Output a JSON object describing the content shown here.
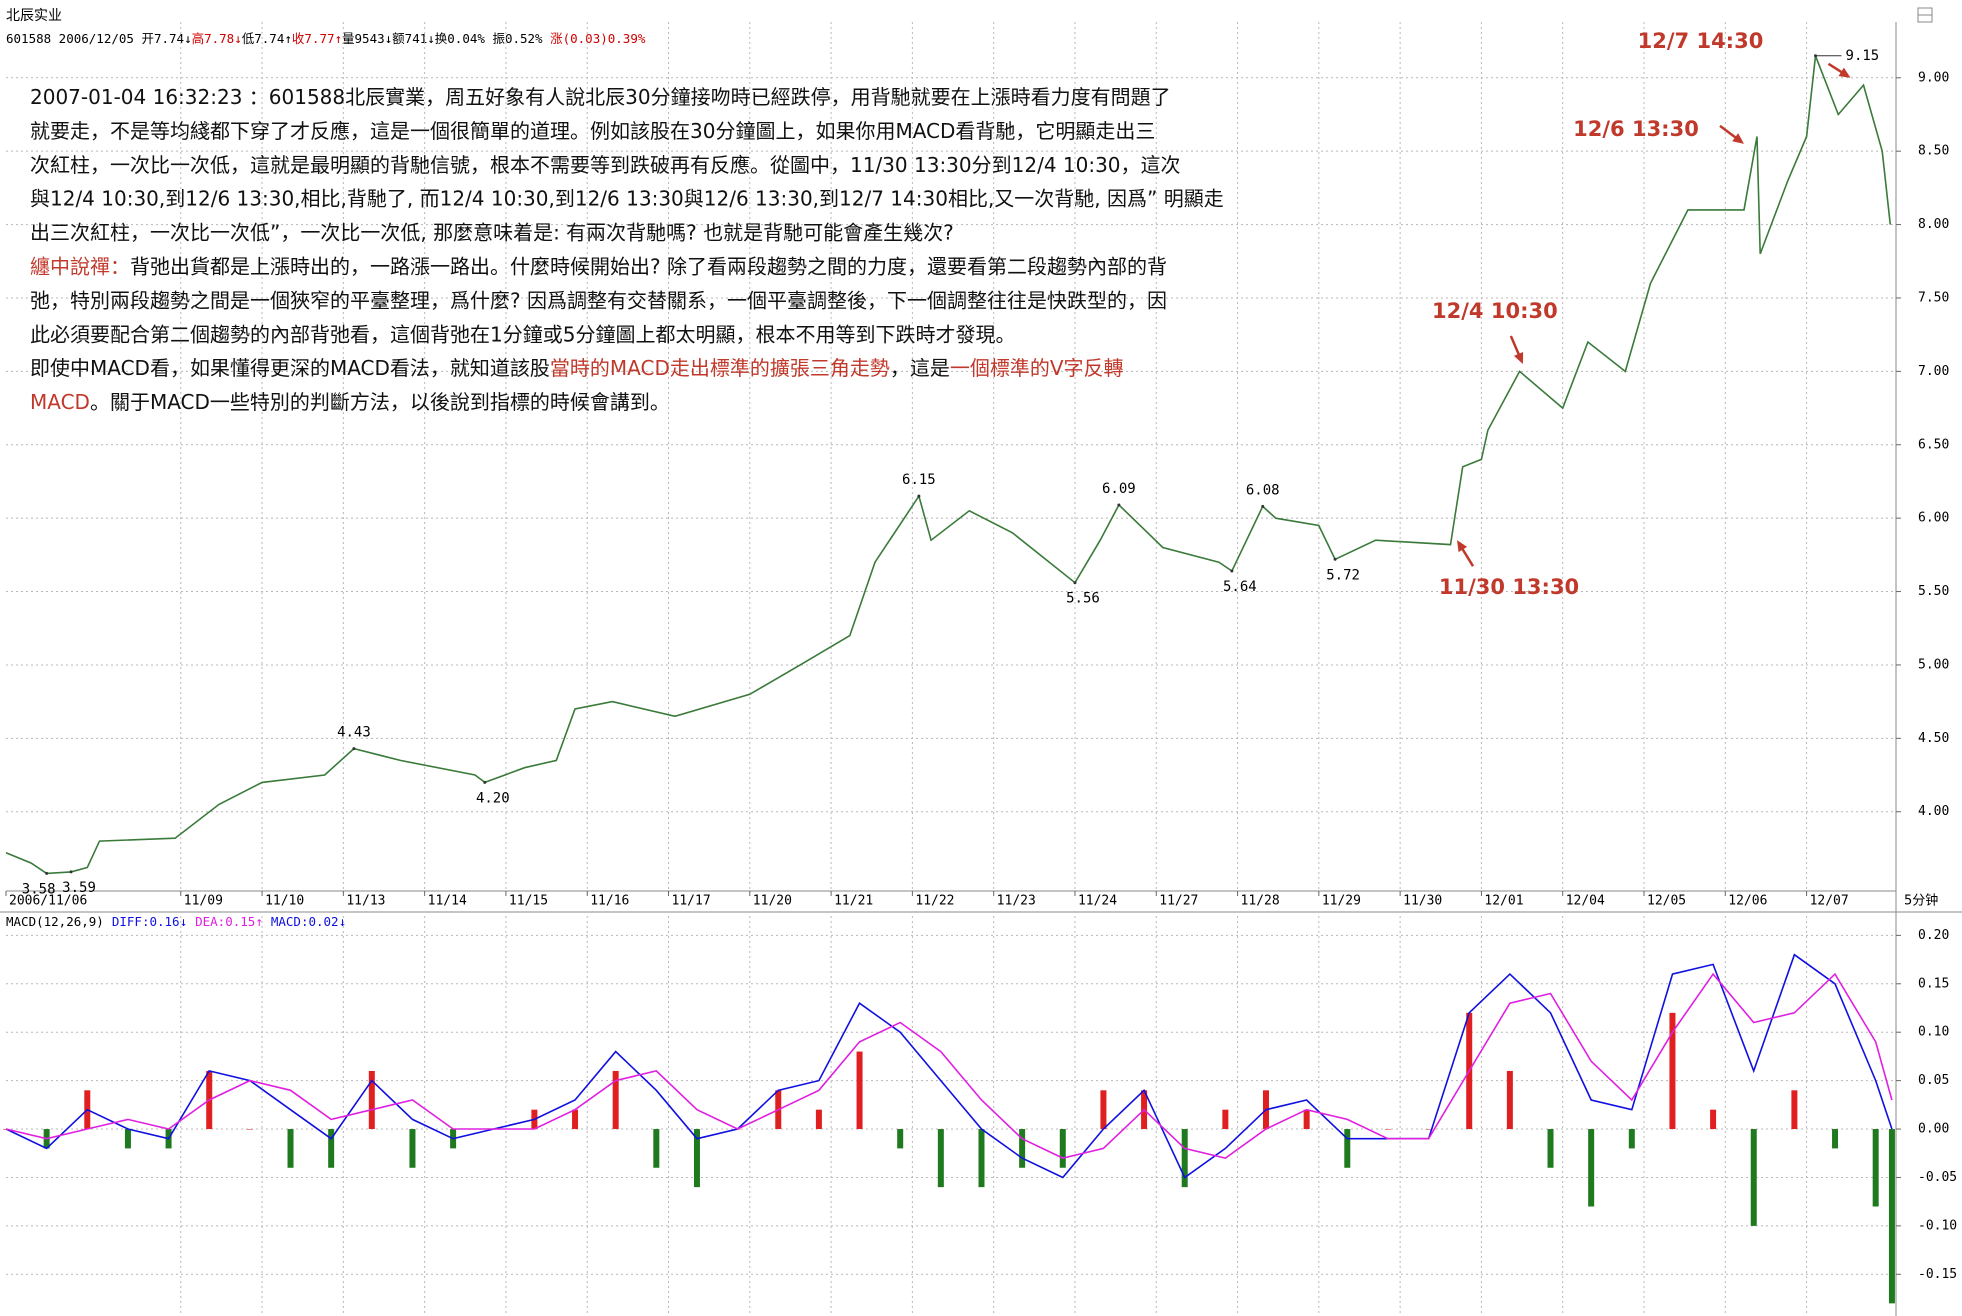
{
  "header": {
    "name": "北辰实业",
    "quote": [
      "601588 2006/12/05 ",
      "开7.74↓",
      {
        "text": "高7.78↓",
        "color": "#d00000"
      },
      "低7.74↑",
      {
        "text": "收7.77↑",
        "color": "#d00000"
      },
      "量9543↓",
      "额741↓",
      "换0.04% ",
      "振0.52% ",
      {
        "text": "涨(0.03)0.39%",
        "color": "#d00000"
      }
    ]
  },
  "note": {
    "lines": [
      [
        "2007-01-04 16:32:23 ：601588北辰實業，周五好象有人說北辰30分鐘接吻時已經跌停，用背馳就要在上漲時看力度有問題了"
      ],
      [
        "就要走，不是等均綫都下穿了才反應，這是一個很簡單的道理。例如該股在30分鐘圖上，如果你用MACD看背馳，它明顯走出三"
      ],
      [
        "次紅柱，一次比一次低，這就是最明顯的背馳信號，根本不需要等到跌破再有反應。從圖中，11/30 13:30分到12/4 10:30，這次"
      ],
      [
        "與12/4 10:30,到12/6 13:30,相比,背馳了, 而12/4 10:30,到12/6 13:30與12/6 13:30,到12/7 14:30相比,又一次背馳, 因爲” 明顯走"
      ],
      [
        "出三次紅柱，一次比一次低”，一次比一次低, 那麼意味着是: 有兩次背馳嗎? 也就是背馳可能會產生幾次?"
      ],
      [
        {
          "text": "纏中說禪：",
          "color": "#c0392b"
        },
        "背弛出貨都是上漲時出的，一路漲一路出。什麼時候開始出? 除了看兩段趨勢之間的力度，還要看第二段趨勢內部的背"
      ],
      [
        "弛，特別兩段趨勢之間是一個狹窄的平臺整理，爲什麼? 因爲調整有交替關系，一個平臺調整後，下一個調整往往是快跌型的，因"
      ],
      [
        "此必須要配合第二個趨勢的內部背弛看，這個背弛在1分鐘或5分鐘圖上都太明顯，根本不用等到下跌時才發現。"
      ],
      [
        "即使中MACD看，如果懂得更深的MACD看法，就知道該股",
        {
          "text": "當時的MACD走出標準的擴張三角走勢",
          "color": "#c0392b"
        },
        "，這是",
        {
          "text": "一個標準的V字反轉",
          "color": "#c0392b"
        }
      ],
      [
        {
          "text": "MACD",
          "color": "#c0392b"
        },
        "。關于MACD一些特別的判斷方法，以後說到指標的時候會講到。"
      ]
    ]
  },
  "chart_data": [
    {
      "type": "line",
      "color": "#3a7a3a",
      "grid": true,
      "period_label": "5分钟",
      "x": [
        0,
        0.31,
        0.5,
        0.8,
        1.0,
        1.15,
        2.08,
        2.62,
        3.15,
        3.92,
        4.28,
        4.85,
        5.77,
        5.89,
        6.38,
        6.77,
        7.0,
        7.46,
        8.23,
        9.15,
        9.77,
        10.38,
        10.69,
        11.23,
        11.38,
        11.85,
        12.38,
        13.15,
        13.46,
        13.69,
        14.23,
        14.92,
        15.08,
        15.46,
        15.62,
        16.15,
        16.35,
        16.85,
        17.77,
        17.92,
        18.15,
        18.23,
        18.62,
        19.15,
        19.46,
        19.92,
        20.23,
        20.69,
        21.38,
        21.54,
        21.58,
        21.92,
        22.15,
        22.26,
        22.54,
        22.85,
        23.08,
        23.18
      ],
      "values": [
        3.72,
        3.65,
        3.58,
        3.59,
        3.62,
        3.8,
        3.82,
        4.05,
        4.2,
        4.25,
        4.43,
        4.35,
        4.25,
        4.2,
        4.3,
        4.35,
        4.7,
        4.75,
        4.65,
        4.8,
        5.0,
        5.2,
        5.7,
        6.15,
        5.85,
        6.05,
        5.9,
        5.56,
        5.85,
        6.09,
        5.8,
        5.7,
        5.64,
        6.08,
        6.0,
        5.95,
        5.72,
        5.85,
        5.82,
        6.35,
        6.4,
        6.6,
        7.0,
        6.75,
        7.2,
        7.0,
        7.6,
        8.1,
        8.1,
        8.6,
        7.8,
        8.3,
        8.6,
        9.15,
        8.75,
        8.95,
        8.5,
        8.0
      ],
      "price_marks": [
        {
          "x": 0.5,
          "value": 3.58,
          "label": "3.58",
          "kind": "low"
        },
        {
          "x": 0.8,
          "value": 3.59,
          "label": "3.59",
          "kind": "low"
        },
        {
          "x": 4.28,
          "value": 4.43,
          "label": "4.43",
          "kind": "high"
        },
        {
          "x": 5.89,
          "value": 4.2,
          "label": "4.20",
          "kind": "low"
        },
        {
          "x": 11.23,
          "value": 6.15,
          "label": "6.15",
          "kind": "high"
        },
        {
          "x": 13.15,
          "value": 5.56,
          "label": "5.56",
          "kind": "low"
        },
        {
          "x": 13.69,
          "value": 6.09,
          "label": "6.09",
          "kind": "high"
        },
        {
          "x": 15.08,
          "value": 5.64,
          "label": "5.64",
          "kind": "low"
        },
        {
          "x": 15.46,
          "value": 6.08,
          "label": "6.08",
          "kind": "high"
        },
        {
          "x": 16.35,
          "value": 5.72,
          "label": "5.72",
          "kind": "low"
        },
        {
          "x": 22.26,
          "value": 9.15,
          "label": "9.15",
          "kind": "peak"
        }
      ],
      "annotations": [
        {
          "text": "12/7 14:30",
          "x": 22.69,
          "y": 9.0
        },
        {
          "text": "12/6 13:30",
          "x": 21.38,
          "y": 8.55
        },
        {
          "text": "12/4 10:30",
          "x": 18.66,
          "y": 7.05
        },
        {
          "text": "11/30 13:30",
          "x": 17.85,
          "y": 5.85
        }
      ],
      "annotation_color": "#c0392b",
      "xlim": [
        0,
        23.25
      ],
      "xticks": [
        {
          "value": 0,
          "label": "2006/11/06"
        },
        {
          "value": 2.15,
          "label": "11/09"
        },
        {
          "value": 3.15,
          "label": "11/10"
        },
        {
          "value": 4.15,
          "label": "11/13"
        },
        {
          "value": 5.15,
          "label": "11/14"
        },
        {
          "value": 6.15,
          "label": "11/15"
        },
        {
          "value": 7.15,
          "label": "11/16"
        },
        {
          "value": 8.15,
          "label": "11/17"
        },
        {
          "value": 9.15,
          "label": "11/20"
        },
        {
          "value": 10.15,
          "label": "11/21"
        },
        {
          "value": 11.15,
          "label": "11/22"
        },
        {
          "value": 12.15,
          "label": "11/23"
        },
        {
          "value": 13.15,
          "label": "11/24"
        },
        {
          "value": 14.15,
          "label": "11/27"
        },
        {
          "value": 15.15,
          "label": "11/28"
        },
        {
          "value": 16.15,
          "label": "11/29"
        },
        {
          "value": 17.15,
          "label": "11/30"
        },
        {
          "value": 18.15,
          "label": "12/01"
        },
        {
          "value": 19.15,
          "label": "12/04"
        },
        {
          "value": 20.15,
          "label": "12/05"
        },
        {
          "value": 21.15,
          "label": "12/06"
        },
        {
          "value": 22.15,
          "label": "12/07"
        }
      ],
      "ylim": [
        3.46,
        9.38
      ],
      "yticks": [
        {
          "value": 4.0,
          "label": "4.00"
        },
        {
          "value": 4.5,
          "label": "4.50"
        },
        {
          "value": 5.0,
          "label": "5.00"
        },
        {
          "value": 5.5,
          "label": "5.50"
        },
        {
          "value": 6.0,
          "label": "6.00"
        },
        {
          "value": 6.5,
          "label": "6.50"
        },
        {
          "value": 7.0,
          "label": "7.00"
        },
        {
          "value": 7.5,
          "label": "7.50"
        },
        {
          "value": 8.0,
          "label": "8.00"
        },
        {
          "value": 8.5,
          "label": "8.50"
        },
        {
          "value": 9.0,
          "label": "9.00"
        }
      ]
    },
    {
      "type": "macd",
      "title": "MACD(12,26,9)",
      "grid": true,
      "x": [
        0,
        0.5,
        1,
        1.5,
        2,
        2.5,
        3,
        3.5,
        4,
        4.5,
        5,
        5.5,
        6,
        6.5,
        7,
        7.5,
        8,
        8.5,
        9,
        9.5,
        10,
        10.5,
        11,
        11.5,
        12,
        12.5,
        13,
        13.5,
        14,
        14.5,
        15,
        15.5,
        16,
        16.5,
        17,
        17.5,
        18,
        18.5,
        19,
        19.5,
        20,
        20.5,
        21,
        21.5,
        22,
        22.5,
        23,
        23.2
      ],
      "series": [
        {
          "name": "DIFF:0.16↓",
          "color": "#1010e0",
          "type": "line",
          "values": [
            0.0,
            -0.02,
            0.02,
            0.0,
            -0.01,
            0.06,
            0.05,
            0.02,
            -0.01,
            0.05,
            0.01,
            -0.01,
            0.0,
            0.01,
            0.03,
            0.08,
            0.04,
            -0.01,
            0.0,
            0.04,
            0.05,
            0.13,
            0.1,
            0.05,
            0.0,
            -0.03,
            -0.05,
            0.0,
            0.04,
            -0.05,
            -0.02,
            0.02,
            0.03,
            -0.01,
            -0.01,
            -0.01,
            0.12,
            0.16,
            0.12,
            0.03,
            0.02,
            0.16,
            0.17,
            0.06,
            0.18,
            0.15,
            0.05,
            0.0
          ]
        },
        {
          "name": "DEA:0.15↑",
          "color": "#e020e0",
          "type": "line",
          "values": [
            0.0,
            -0.01,
            0.0,
            0.01,
            0.0,
            0.03,
            0.05,
            0.04,
            0.01,
            0.02,
            0.03,
            0.0,
            0.0,
            0.0,
            0.02,
            0.05,
            0.06,
            0.02,
            0.0,
            0.02,
            0.04,
            0.09,
            0.11,
            0.08,
            0.03,
            -0.01,
            -0.03,
            -0.02,
            0.02,
            -0.02,
            -0.03,
            0.0,
            0.02,
            0.01,
            -0.01,
            -0.01,
            0.06,
            0.13,
            0.14,
            0.07,
            0.03,
            0.1,
            0.16,
            0.11,
            0.12,
            0.16,
            0.09,
            0.03
          ]
        },
        {
          "name": "MACD:0.02↓",
          "color": "#1010e0",
          "type": "bar",
          "up_color": "#e02020",
          "down_color": "#1f7a1f",
          "values": [
            0.0,
            -0.02,
            0.04,
            -0.02,
            -0.02,
            0.06,
            0.0,
            -0.04,
            -0.04,
            0.06,
            -0.04,
            -0.02,
            0.0,
            0.02,
            0.02,
            0.06,
            -0.04,
            -0.06,
            0.0,
            0.04,
            0.02,
            0.08,
            -0.02,
            -0.06,
            -0.06,
            -0.04,
            -0.04,
            0.04,
            0.04,
            -0.06,
            0.02,
            0.04,
            0.02,
            -0.04,
            0.0,
            0.0,
            0.12,
            0.06,
            -0.04,
            -0.08,
            -0.02,
            0.12,
            0.02,
            -0.1,
            0.04,
            -0.02,
            -0.08,
            -0.18
          ]
        }
      ],
      "xlim": [
        0,
        23.25
      ],
      "ylim": [
        -0.191,
        0.22
      ],
      "yticks": [
        {
          "value": -0.15,
          "label": "-0.15"
        },
        {
          "value": -0.1,
          "label": "-0.10"
        },
        {
          "value": -0.05,
          "label": "-0.05"
        },
        {
          "value": 0,
          "label": "0.00"
        },
        {
          "value": 0.05,
          "label": "0.05"
        },
        {
          "value": 0.1,
          "label": "0.10"
        },
        {
          "value": 0.15,
          "label": "0.15"
        },
        {
          "value": 0.2,
          "label": "0.20"
        }
      ]
    }
  ]
}
